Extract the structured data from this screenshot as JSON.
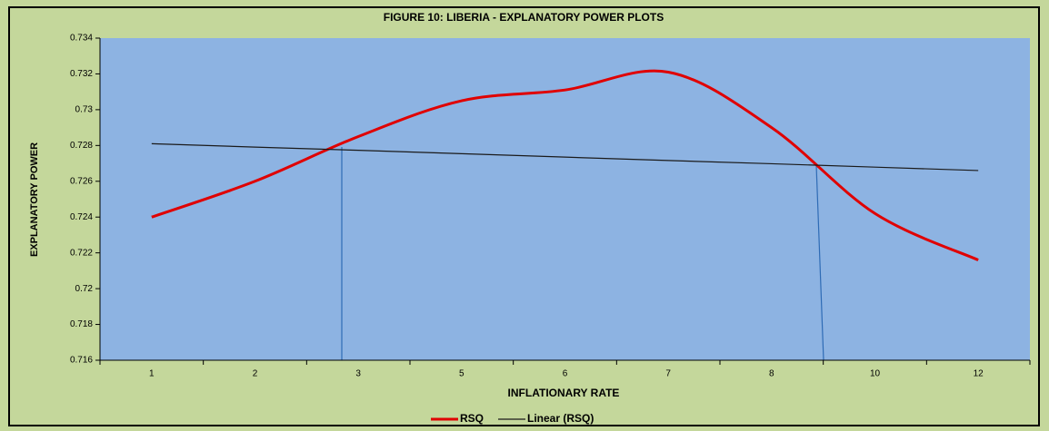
{
  "chart_data": {
    "type": "line",
    "title": "FIGURE 10: LIBERIA - EXPLANATORY POWER PLOTS",
    "x_label": "INFLATIONARY RATE",
    "y_label": "EXPLANATORY POWER",
    "categories": [
      "1",
      "2",
      "3",
      "5",
      "6",
      "7",
      "8",
      "10",
      "12"
    ],
    "series": [
      {
        "name": "RSQ",
        "color": "#e00000",
        "smooth": true,
        "values": [
          0.724,
          0.726,
          0.7285,
          0.7305,
          0.7311,
          0.7321,
          0.729,
          0.7242,
          0.7216
        ]
      },
      {
        "name": "Linear (RSQ)",
        "color": "#1a1a1a",
        "smooth": false,
        "values": [
          0.7281,
          0.72791,
          0.72773,
          0.72754,
          0.72735,
          0.72716,
          0.72698,
          0.72679,
          0.7266
        ]
      }
    ],
    "ylim": [
      0.716,
      0.734
    ],
    "yticks": [
      0.716,
      0.718,
      0.72,
      0.722,
      0.724,
      0.726,
      0.728,
      0.73,
      0.732,
      0.734
    ],
    "legend": "bottom"
  }
}
